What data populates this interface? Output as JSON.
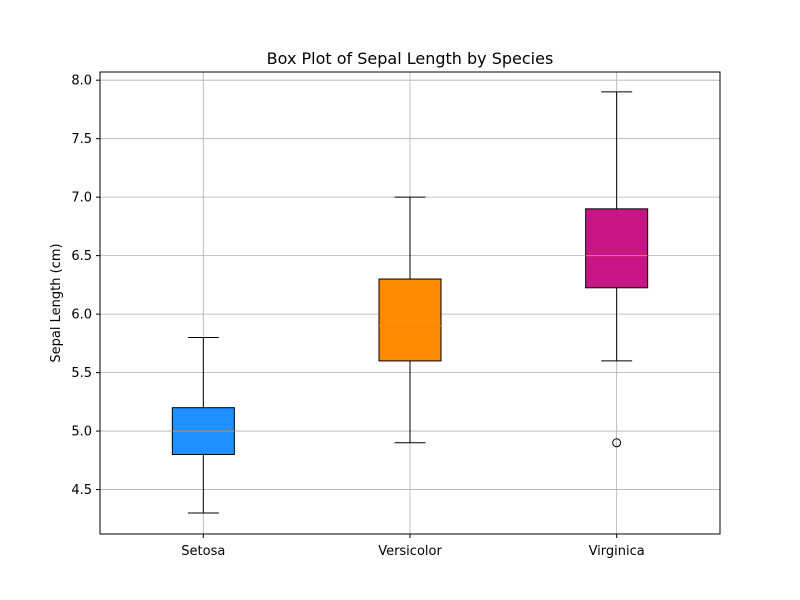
{
  "chart_data": {
    "type": "box",
    "title": "Box Plot of Sepal Length by Species",
    "xlabel": "",
    "ylabel": "Sepal Length (cm)",
    "ylim": [
      4.12,
      8.07
    ],
    "yticks": [
      "4.5",
      "5.0",
      "5.5",
      "6.0",
      "6.5",
      "7.0",
      "7.5",
      "8.0"
    ],
    "grid": true,
    "categories": [
      "Setosa",
      "Versicolor",
      "Virginica"
    ],
    "boxes": [
      {
        "name": "Setosa",
        "whisker_low": 4.3,
        "q1": 4.8,
        "median": 5.0,
        "q3": 5.2,
        "whisker_high": 5.8,
        "outliers": [],
        "color": "#1e90ff"
      },
      {
        "name": "Versicolor",
        "whisker_low": 4.9,
        "q1": 5.6,
        "median": 5.9,
        "q3": 6.3,
        "whisker_high": 7.0,
        "outliers": [],
        "color": "#ff8c00"
      },
      {
        "name": "Virginica",
        "whisker_low": 5.6,
        "q1": 6.225,
        "median": 6.5,
        "q3": 6.9,
        "whisker_high": 7.9,
        "outliers": [
          4.9
        ],
        "color": "#c71585"
      }
    ],
    "median_color": "#ff7f0e"
  }
}
